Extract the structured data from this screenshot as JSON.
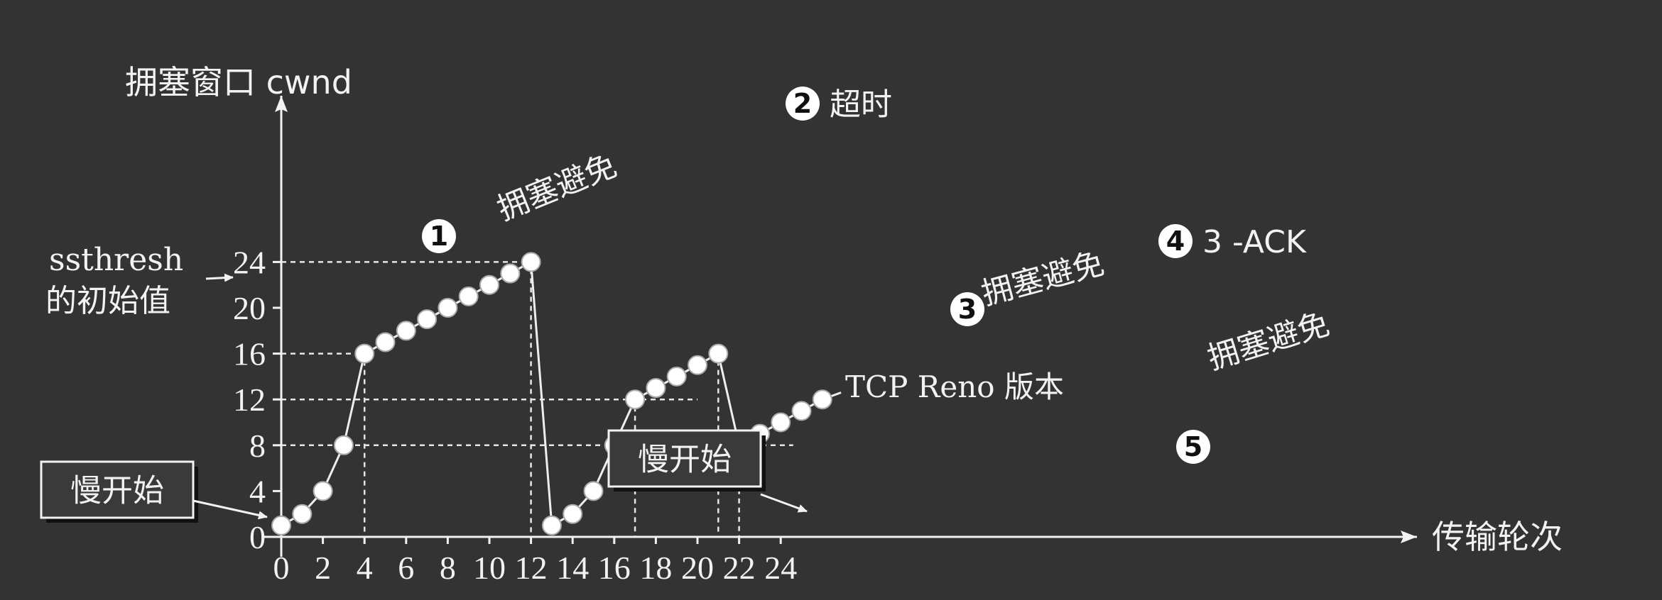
{
  "chart_data": {
    "type": "line",
    "ylabel": "拥塞窗口 cwnd",
    "xlabel": "传输轮次",
    "xlim": [
      0,
      28
    ],
    "ylim": [
      0,
      28
    ],
    "xticks": [
      0,
      2,
      4,
      6,
      8,
      10,
      12,
      14,
      16,
      18,
      20,
      22,
      24
    ],
    "yticks": [
      0,
      4,
      8,
      12,
      16,
      20,
      24
    ],
    "x": [
      0,
      1,
      2,
      3,
      4,
      5,
      6,
      7,
      8,
      9,
      10,
      11,
      12,
      13,
      14,
      15,
      16,
      17,
      18,
      19,
      20,
      21,
      22,
      23,
      24,
      25,
      26
    ],
    "values": [
      1,
      2,
      4,
      8,
      16,
      17,
      18,
      19,
      20,
      21,
      22,
      23,
      24,
      1,
      2,
      4,
      8,
      12,
      13,
      14,
      15,
      16,
      8,
      9,
      10,
      11,
      12
    ],
    "series_name": "TCP Reno 版本",
    "reference_lines_y": [
      24,
      16,
      12,
      8
    ],
    "ssthresh_label": [
      "ssthresh",
      "的初始值"
    ],
    "markers": [
      {
        "id": "1",
        "x": 4,
        "y": 16,
        "text": ""
      },
      {
        "id": "2",
        "x": 12,
        "y": 24,
        "text": "超时"
      },
      {
        "id": "3",
        "x": 17,
        "y": 12,
        "text": ""
      },
      {
        "id": "4",
        "x": 21,
        "y": 16,
        "text": "3 -ACK"
      },
      {
        "id": "5",
        "x": 22,
        "y": 8,
        "text": ""
      }
    ],
    "annotations": {
      "slow_start": "慢开始",
      "congestion_avoidance": "拥塞避免"
    }
  }
}
